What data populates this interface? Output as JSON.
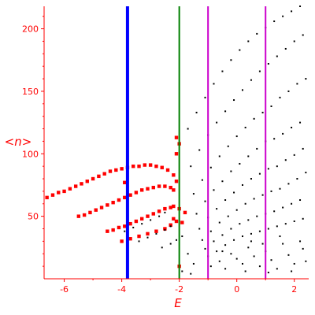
{
  "chart_data": {
    "type": "scatter",
    "title": "",
    "xlabel": "E",
    "ylabel": "<n>",
    "xlim": [
      -6.7,
      2.5
    ],
    "ylim": [
      0,
      218
    ],
    "x_ticks": [
      -6,
      -4,
      -2,
      0,
      2
    ],
    "x_tick_labels": [
      "-6",
      "-4",
      "-2",
      "0",
      "2"
    ],
    "y_ticks": [
      50,
      100,
      150,
      200
    ],
    "y_tick_labels": [
      "50",
      "100",
      "150",
      "200"
    ],
    "axis_color": "#ff0000",
    "grid": false,
    "vertical_lines": [
      {
        "x": -3.8,
        "color": "#0000ff",
        "style": "thick"
      },
      {
        "x": -2.0,
        "color": "#008000",
        "style": "medium"
      },
      {
        "x": -1.0,
        "color": "#cc00cc",
        "style": "medium"
      },
      {
        "x": 1.0,
        "color": "#cc00cc",
        "style": "medium"
      }
    ],
    "series": [
      {
        "color": "#ff0000",
        "marker": "red-blob",
        "points": [
          [
            -6.6,
            65
          ],
          [
            -6.4,
            67
          ],
          [
            -6.2,
            69
          ],
          [
            -6.0,
            70
          ],
          [
            -5.8,
            72
          ],
          [
            -5.6,
            74
          ],
          [
            -5.4,
            76
          ],
          [
            -5.2,
            78
          ],
          [
            -5.0,
            80
          ],
          [
            -4.8,
            82
          ],
          [
            -4.6,
            84
          ],
          [
            -4.4,
            86
          ],
          [
            -4.2,
            87
          ],
          [
            -4.0,
            88
          ],
          [
            -3.8,
            89
          ],
          [
            -3.6,
            90
          ],
          [
            -3.4,
            90
          ],
          [
            -3.2,
            91
          ],
          [
            -3.0,
            91
          ],
          [
            -2.8,
            90
          ],
          [
            -2.6,
            89
          ],
          [
            -2.4,
            87
          ],
          [
            -2.2,
            83
          ],
          [
            -2.1,
            78
          ],
          [
            -5.5,
            50
          ],
          [
            -5.3,
            51
          ],
          [
            -5.1,
            53
          ],
          [
            -4.9,
            55
          ],
          [
            -4.7,
            57
          ],
          [
            -4.5,
            59
          ],
          [
            -4.3,
            61
          ],
          [
            -4.1,
            63
          ],
          [
            -3.9,
            65
          ],
          [
            -3.7,
            67
          ],
          [
            -3.5,
            69
          ],
          [
            -3.3,
            71
          ],
          [
            -3.1,
            72
          ],
          [
            -2.9,
            73
          ],
          [
            -2.7,
            74
          ],
          [
            -2.5,
            74
          ],
          [
            -2.3,
            73
          ],
          [
            -2.2,
            71
          ],
          [
            -4.5,
            38
          ],
          [
            -4.3,
            39
          ],
          [
            -4.1,
            41
          ],
          [
            -3.9,
            42
          ],
          [
            -3.7,
            44
          ],
          [
            -3.5,
            46
          ],
          [
            -3.3,
            48
          ],
          [
            -3.1,
            50
          ],
          [
            -2.9,
            52
          ],
          [
            -2.7,
            54
          ],
          [
            -2.5,
            56
          ],
          [
            -2.3,
            57
          ],
          [
            -2.2,
            58
          ],
          [
            -2.0,
            56
          ],
          [
            -1.8,
            53
          ],
          [
            -4.0,
            30
          ],
          [
            -3.7,
            32
          ],
          [
            -3.4,
            34
          ],
          [
            -3.1,
            36
          ],
          [
            -2.8,
            38
          ],
          [
            -2.5,
            40
          ],
          [
            -2.3,
            43
          ],
          [
            -2.1,
            46
          ],
          [
            -1.9,
            45
          ],
          [
            -3.9,
            77
          ],
          [
            -2.1,
            100
          ],
          [
            -2.0,
            108
          ],
          [
            -2.1,
            113
          ],
          [
            -2.2,
            48
          ],
          [
            -2.0,
            10
          ]
        ]
      },
      {
        "color": "#000000",
        "marker": "small-dot",
        "points": [
          [
            -1.7,
            120
          ],
          [
            -1.4,
            133
          ],
          [
            -1.1,
            145
          ],
          [
            -0.8,
            156
          ],
          [
            -0.5,
            166
          ],
          [
            -0.2,
            175
          ],
          [
            0.1,
            183
          ],
          [
            0.4,
            190
          ],
          [
            0.7,
            196
          ],
          [
            1.0,
            201
          ],
          [
            1.3,
            206
          ],
          [
            1.6,
            210
          ],
          [
            1.9,
            214
          ],
          [
            2.2,
            218
          ],
          [
            -1.6,
            90
          ],
          [
            -1.3,
            103
          ],
          [
            -1.0,
            115
          ],
          [
            -0.7,
            125
          ],
          [
            -0.4,
            134
          ],
          [
            -0.1,
            143
          ],
          [
            0.2,
            151
          ],
          [
            0.5,
            159
          ],
          [
            0.8,
            166
          ],
          [
            1.1,
            172
          ],
          [
            1.4,
            178
          ],
          [
            1.7,
            184
          ],
          [
            2.0,
            190
          ],
          [
            2.3,
            195
          ],
          [
            -1.5,
            68
          ],
          [
            -1.2,
            79
          ],
          [
            -0.9,
            89
          ],
          [
            -0.6,
            98
          ],
          [
            -0.3,
            106
          ],
          [
            0.0,
            114
          ],
          [
            0.3,
            121
          ],
          [
            0.6,
            128
          ],
          [
            0.9,
            133
          ],
          [
            1.2,
            138
          ],
          [
            1.5,
            145
          ],
          [
            1.8,
            150
          ],
          [
            2.1,
            156
          ],
          [
            2.4,
            160
          ],
          [
            -1.4,
            52
          ],
          [
            -1.1,
            62
          ],
          [
            -0.8,
            71
          ],
          [
            -0.5,
            78
          ],
          [
            -0.2,
            86
          ],
          [
            0.1,
            92
          ],
          [
            0.4,
            98
          ],
          [
            0.7,
            104
          ],
          [
            1.0,
            110
          ],
          [
            1.3,
            112
          ],
          [
            1.6,
            116
          ],
          [
            1.9,
            121
          ],
          [
            2.2,
            125
          ],
          [
            -1.3,
            40
          ],
          [
            -1.0,
            49
          ],
          [
            -0.7,
            56
          ],
          [
            -0.4,
            63
          ],
          [
            -0.1,
            69
          ],
          [
            0.2,
            75
          ],
          [
            0.5,
            80
          ],
          [
            0.8,
            84
          ],
          [
            1.1,
            88
          ],
          [
            1.4,
            90
          ],
          [
            1.7,
            95
          ],
          [
            2.0,
            99
          ],
          [
            2.3,
            104
          ],
          [
            -1.2,
            31
          ],
          [
            -0.9,
            38
          ],
          [
            -0.6,
            45
          ],
          [
            -0.3,
            50
          ],
          [
            0.0,
            55
          ],
          [
            0.3,
            60
          ],
          [
            0.6,
            64
          ],
          [
            0.9,
            67
          ],
          [
            1.2,
            70
          ],
          [
            1.5,
            72
          ],
          [
            1.8,
            76
          ],
          [
            2.1,
            80
          ],
          [
            2.4,
            85
          ],
          [
            -1.1,
            24
          ],
          [
            -0.8,
            30
          ],
          [
            -0.5,
            35
          ],
          [
            -0.2,
            40
          ],
          [
            0.1,
            44
          ],
          [
            0.4,
            47
          ],
          [
            0.7,
            50
          ],
          [
            1.0,
            52
          ],
          [
            1.3,
            54
          ],
          [
            1.6,
            57
          ],
          [
            1.9,
            60
          ],
          [
            2.2,
            63
          ],
          [
            -1.0,
            18
          ],
          [
            -0.7,
            22
          ],
          [
            -0.4,
            27
          ],
          [
            -0.1,
            31
          ],
          [
            0.2,
            34
          ],
          [
            0.5,
            36
          ],
          [
            0.8,
            38
          ],
          [
            1.1,
            40
          ],
          [
            1.4,
            42
          ],
          [
            1.7,
            44
          ],
          [
            2.0,
            46
          ],
          [
            2.3,
            48
          ],
          [
            -3.9,
            38
          ],
          [
            -3.6,
            41
          ],
          [
            -3.3,
            44
          ],
          [
            -3.0,
            47
          ],
          [
            -2.7,
            50
          ],
          [
            -2.5,
            53
          ],
          [
            -3.4,
            30
          ],
          [
            -3.1,
            33
          ],
          [
            -2.8,
            36
          ],
          [
            -2.5,
            39
          ],
          [
            -2.3,
            42
          ],
          [
            -2.6,
            25
          ],
          [
            -2.3,
            28
          ],
          [
            -2.1,
            31
          ],
          [
            -1.9,
            34
          ],
          [
            -0.9,
            10
          ],
          [
            -0.6,
            14
          ],
          [
            -0.4,
            8
          ],
          [
            -0.2,
            20
          ],
          [
            0.0,
            16
          ],
          [
            0.2,
            12
          ],
          [
            0.4,
            25
          ],
          [
            0.6,
            18
          ],
          [
            0.8,
            10
          ],
          [
            1.0,
            22
          ],
          [
            1.2,
            15
          ],
          [
            1.4,
            8
          ],
          [
            1.6,
            28
          ],
          [
            1.8,
            19
          ],
          [
            2.0,
            12
          ],
          [
            2.2,
            30
          ],
          [
            2.4,
            14
          ],
          [
            0.3,
            6
          ],
          [
            1.1,
            5
          ],
          [
            -0.5,
            22
          ],
          [
            0.5,
            30
          ],
          [
            1.5,
            34
          ],
          [
            2.3,
            24
          ],
          [
            -1.5,
            12
          ],
          [
            -1.7,
            20
          ],
          [
            -1.9,
            6
          ],
          [
            -1.6,
            4
          ],
          [
            0.9,
            28
          ],
          [
            1.9,
            6
          ]
        ]
      }
    ]
  }
}
